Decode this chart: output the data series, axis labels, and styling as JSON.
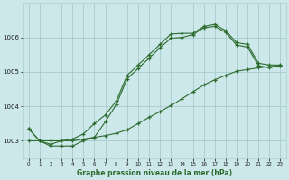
{
  "xlabel": "Graphe pression niveau de la mer (hPa)",
  "background_color": "#cce8ea",
  "grid_color": "#aacccc",
  "line_color": "#2d6b2d",
  "ylim": [
    1002.5,
    1007.0
  ],
  "xlim": [
    -0.5,
    23.5
  ],
  "yticks": [
    1003,
    1004,
    1005,
    1006
  ],
  "xticks": [
    0,
    1,
    2,
    3,
    4,
    5,
    6,
    7,
    8,
    9,
    10,
    11,
    12,
    13,
    14,
    15,
    16,
    17,
    18,
    19,
    20,
    21,
    22,
    23
  ],
  "series1_x": [
    0,
    1,
    2,
    3,
    4,
    5,
    6,
    7,
    8,
    9,
    10,
    11,
    12,
    13,
    14,
    15,
    16,
    17,
    18,
    19,
    20,
    21,
    22,
    23
  ],
  "series1_y": [
    1003.35,
    1003.0,
    1002.9,
    1003.0,
    1003.05,
    1003.2,
    1003.5,
    1003.75,
    1004.15,
    1004.9,
    1005.2,
    1005.5,
    1005.8,
    1006.1,
    1006.12,
    1006.12,
    1006.32,
    1006.38,
    1006.2,
    1005.85,
    1005.8,
    1005.25,
    1005.2,
    1005.2
  ],
  "series2_x": [
    0,
    1,
    2,
    3,
    4,
    5,
    6,
    7,
    8,
    9,
    10,
    11,
    12,
    13,
    14,
    15,
    16,
    17,
    18,
    19,
    20,
    21,
    22,
    23
  ],
  "series2_y": [
    1003.35,
    1003.0,
    1002.85,
    1002.85,
    1002.85,
    1003.0,
    1003.1,
    1003.55,
    1004.05,
    1004.8,
    1005.1,
    1005.4,
    1005.7,
    1005.98,
    1006.0,
    1006.08,
    1006.28,
    1006.32,
    1006.15,
    1005.78,
    1005.72,
    1005.18,
    1005.12,
    1005.18
  ],
  "series3_x": [
    0,
    1,
    2,
    3,
    4,
    5,
    6,
    7,
    8,
    9,
    10,
    11,
    12,
    13,
    14,
    15,
    16,
    17,
    18,
    19,
    20,
    21,
    22,
    23
  ],
  "series3_y": [
    1003.0,
    1003.0,
    1003.0,
    1003.0,
    1003.0,
    1003.05,
    1003.1,
    1003.15,
    1003.22,
    1003.32,
    1003.5,
    1003.68,
    1003.85,
    1004.02,
    1004.22,
    1004.42,
    1004.62,
    1004.77,
    1004.9,
    1005.02,
    1005.07,
    1005.12,
    1005.15,
    1005.18
  ]
}
